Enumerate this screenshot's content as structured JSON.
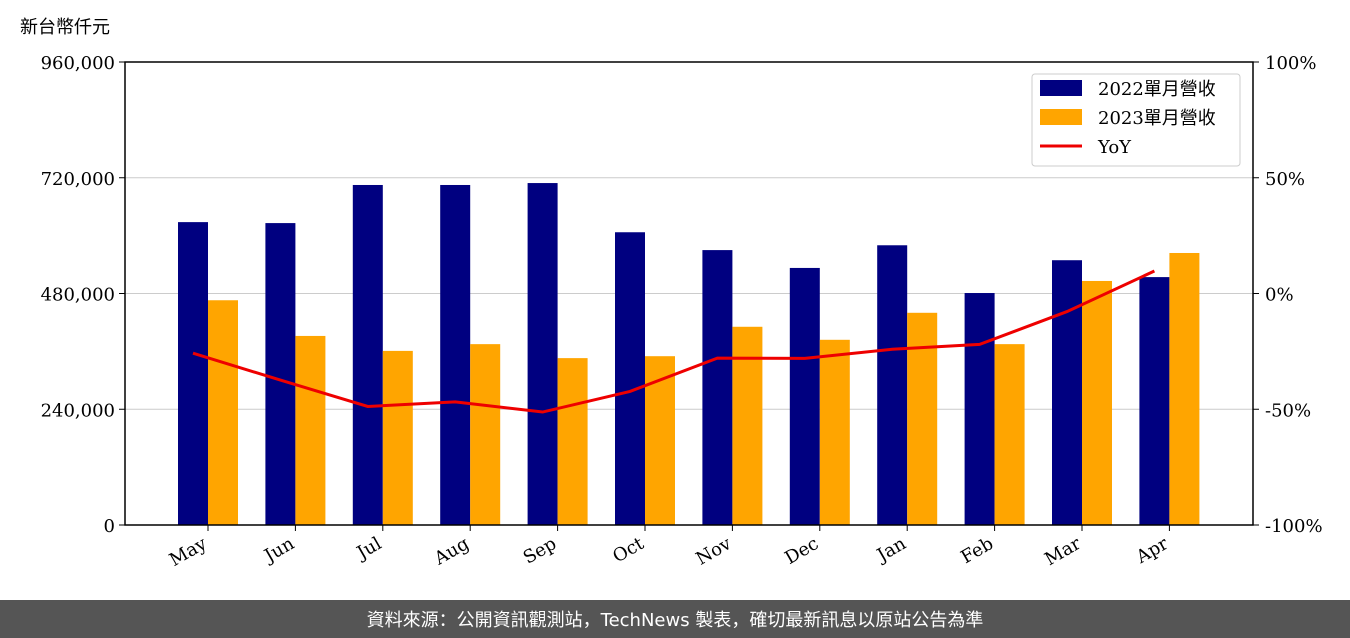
{
  "chart_data": {
    "type": "bar-line",
    "y_label": "新台幣仟元",
    "categories": [
      "May",
      "Jun",
      "Jul",
      "Aug",
      "Sep",
      "Oct",
      "Nov",
      "Dec",
      "Jan",
      "Feb",
      "Mar",
      "Apr"
    ],
    "series": [
      {
        "name": "2022單月營收",
        "color": "#000080",
        "type": "bar",
        "values": [
          628000,
          626000,
          705000,
          705000,
          709000,
          607000,
          570000,
          533000,
          580000,
          481000,
          549000,
          514000
        ]
      },
      {
        "name": "2023單月營收",
        "color": "#ffa500",
        "type": "bar",
        "values": [
          466000,
          392000,
          361000,
          375000,
          346000,
          350000,
          411000,
          384000,
          440000,
          375000,
          506000,
          564000
        ]
      },
      {
        "name": "YoY",
        "color": "#ee0000",
        "type": "line",
        "axis": "y2",
        "values": [
          -25.8,
          -37.4,
          -48.8,
          -46.8,
          -51.2,
          -42.3,
          -27.9,
          -28.0,
          -24.1,
          -22.0,
          -7.8,
          9.7
        ]
      }
    ],
    "ylim": [
      0,
      960000
    ],
    "yticks": [
      0,
      {
        "value": 240000,
        "label": "240,000"
      },
      {
        "value": 480000,
        "label": "480,000"
      },
      {
        "value": 720000,
        "label": "720,000"
      },
      {
        "value": 960000,
        "label": "960,000"
      }
    ],
    "y2lim": [
      -100,
      100
    ],
    "y2ticks": [
      {
        "value": -100,
        "label": "-100%"
      },
      {
        "value": -50,
        "label": "-50%"
      },
      {
        "value": 0,
        "label": "0%"
      },
      {
        "value": 50,
        "label": "50%"
      },
      {
        "value": 100,
        "label": "100%"
      }
    ],
    "grid": true,
    "legend": "upper right",
    "footer": "資料來源：公開資訊觀測站，TechNews 製表，確切最新訊息以原站公告為準"
  }
}
